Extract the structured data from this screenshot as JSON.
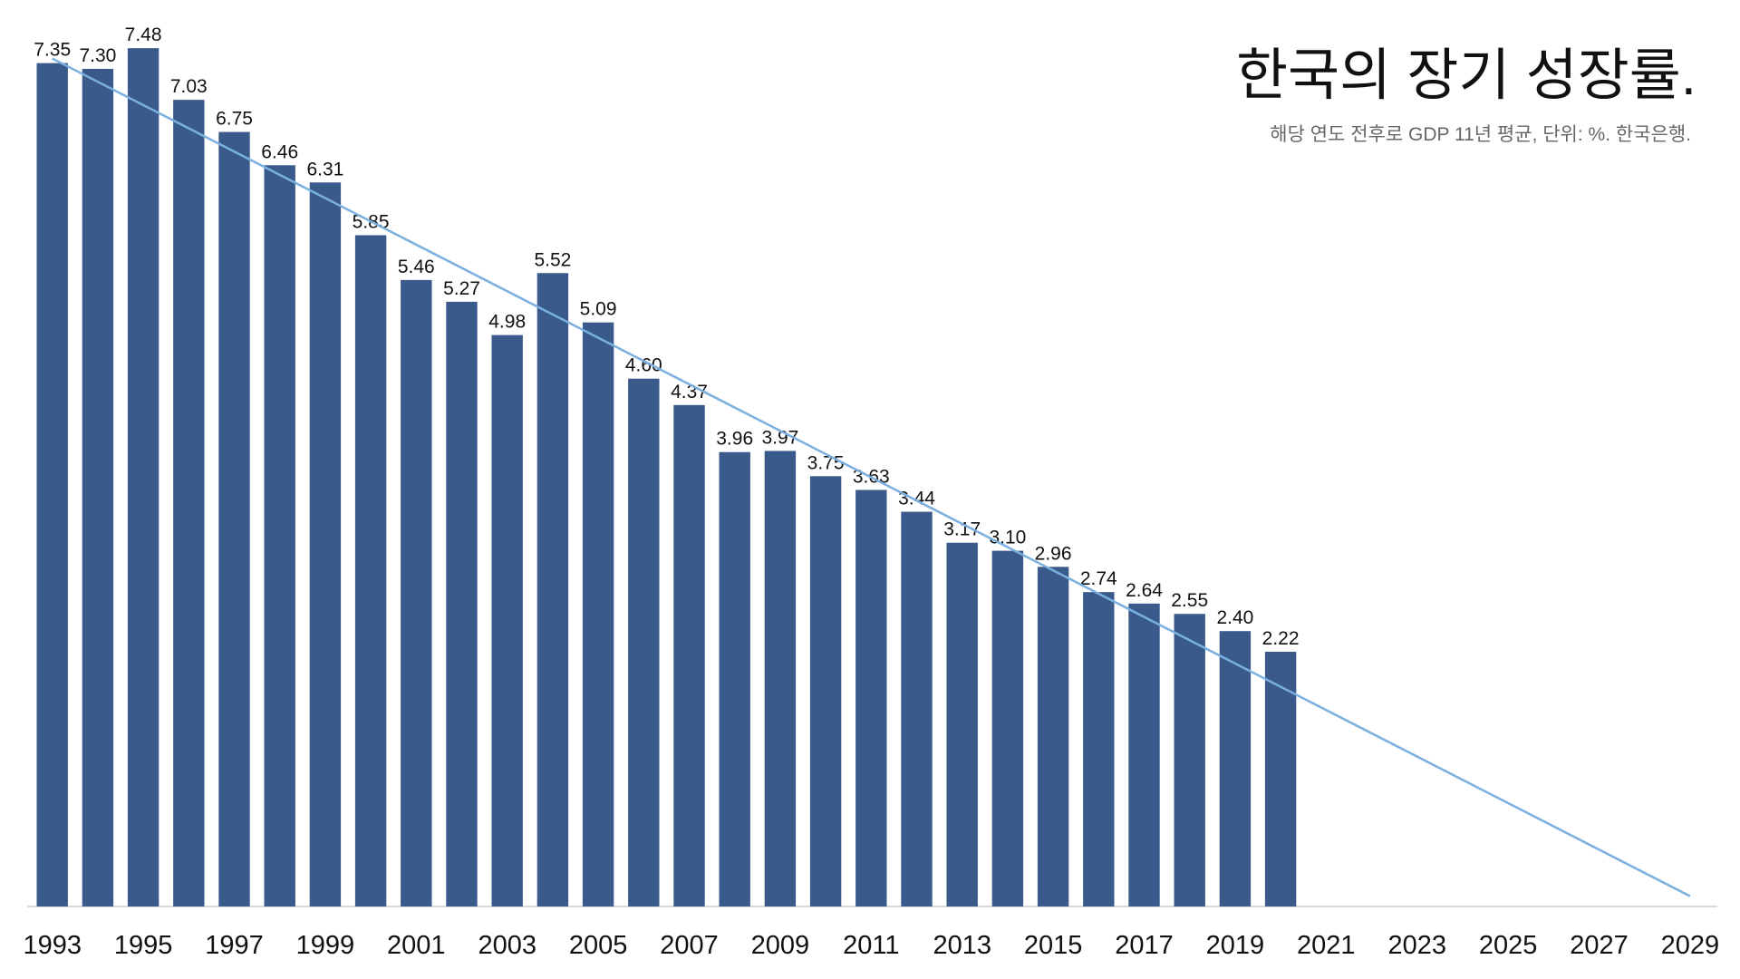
{
  "chart_data": {
    "type": "bar",
    "title": "한국의 장기 성장률.",
    "subtitle": "해당 연도 전후로 GDP 11년 평균, 단위: %. 한국은행.",
    "categories": [
      "1993",
      null,
      "1995",
      null,
      "1997",
      null,
      "1999",
      null,
      "2001",
      null,
      "2003",
      null,
      "2005",
      null,
      "2007",
      null,
      "2009",
      null,
      "2011",
      null,
      "2013",
      null,
      "2015",
      null,
      "2017",
      null,
      "2019",
      null,
      "2021",
      null,
      "2023",
      null,
      "2025",
      null,
      "2027",
      null,
      "2029"
    ],
    "values": [
      7.35,
      7.3,
      7.48,
      7.03,
      6.75,
      6.46,
      6.31,
      5.85,
      5.46,
      5.27,
      4.98,
      5.52,
      5.09,
      4.6,
      4.37,
      3.96,
      3.97,
      3.75,
      3.63,
      3.44,
      3.17,
      3.1,
      2.96,
      2.74,
      2.64,
      2.55,
      2.4,
      2.22,
      null,
      null,
      null,
      null,
      null,
      null,
      null,
      null,
      null
    ],
    "value_labels": [
      "7.35",
      "7.30",
      "7.48",
      "7.03",
      "6.75",
      "6.46",
      "6.31",
      "5.85",
      "5.46",
      "5.27",
      "4.98",
      "5.52",
      "5.09",
      "4.60",
      "4.37",
      "3.96",
      "3.97",
      "3.75",
      "3.63",
      "3.44",
      "3.17",
      "3.10",
      "2.96",
      "2.74",
      "2.64",
      "2.55",
      "2.40",
      "2.22",
      null,
      null,
      null,
      null,
      null,
      null,
      null,
      null,
      null
    ],
    "color": "#3a5a8c",
    "trend": {
      "color": "#7ab0e0",
      "values": [
        7.39,
        0.09
      ]
    },
    "ylim": [
      0,
      7.9
    ]
  }
}
